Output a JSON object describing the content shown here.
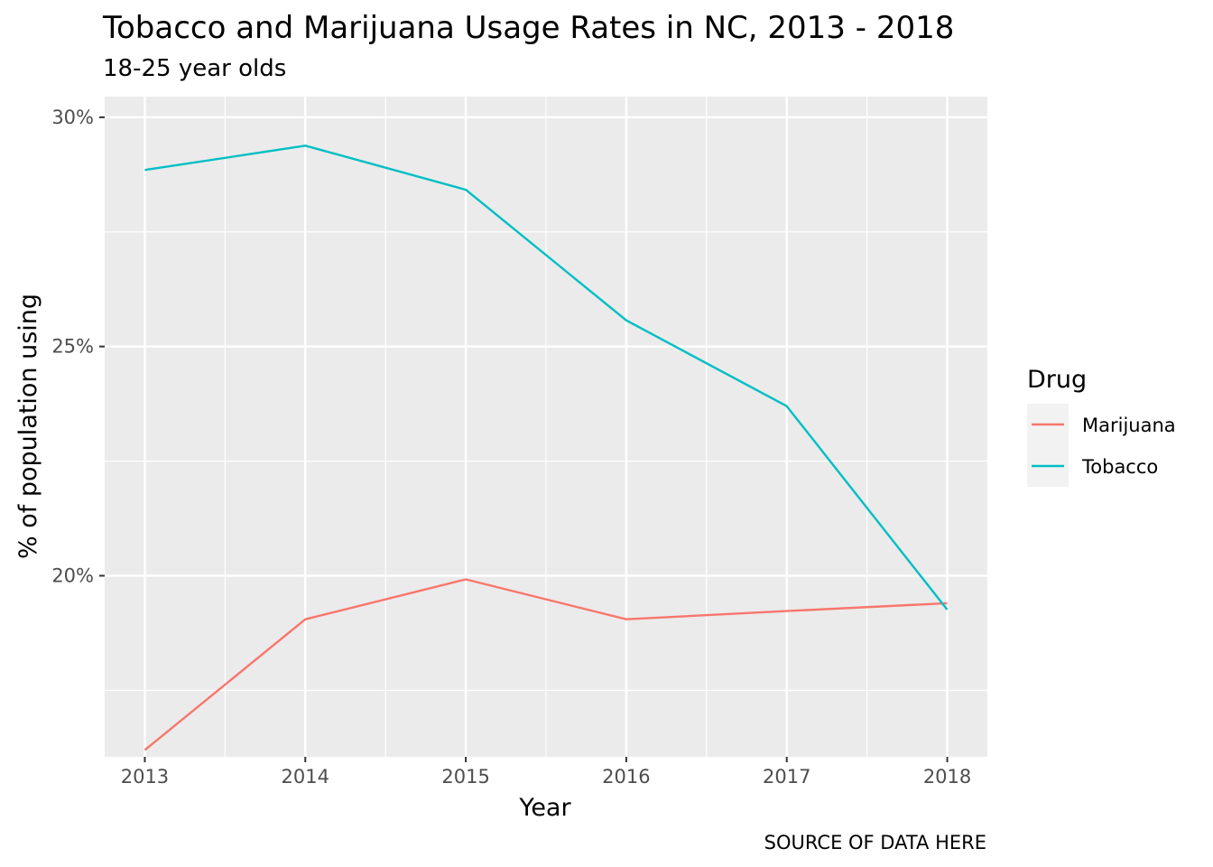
{
  "chart_data": {
    "type": "line",
    "title": "Tobacco and Marijuana Usage Rates in NC, 2013 - 2018",
    "subtitle": "18-25 year olds",
    "xlabel": "Year",
    "ylabel": "% of population using",
    "caption": "SOURCE OF DATA HERE",
    "x": [
      2013,
      2014,
      2015,
      2016,
      2017,
      2018
    ],
    "xlim": [
      2012.75,
      2018.25
    ],
    "ylim": [
      16.05,
      30.45
    ],
    "y_ticks": [
      20,
      25,
      30
    ],
    "y_tick_labels": [
      "20%",
      "25%",
      "30%"
    ],
    "x_tick_labels": [
      "2013",
      "2014",
      "2015",
      "2016",
      "2017",
      "2018"
    ],
    "grid": true,
    "legend": {
      "title": "Drug",
      "position": "right"
    },
    "series": [
      {
        "name": "Marijuana",
        "color": "#F8766D",
        "values": [
          16.2,
          19.05,
          19.92,
          19.05,
          19.23,
          19.4
        ]
      },
      {
        "name": "Tobacco",
        "color": "#00BFC4",
        "values": [
          28.85,
          29.38,
          28.42,
          25.57,
          23.7,
          19.26
        ]
      }
    ]
  }
}
